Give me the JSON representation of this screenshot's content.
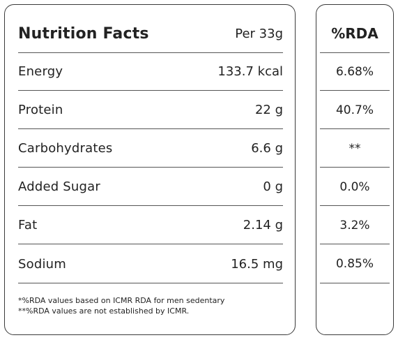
{
  "nutrition": {
    "title": "Nutrition Facts",
    "serving": "Per 33g",
    "rows": [
      {
        "label": "Energy",
        "value": "133.7 kcal"
      },
      {
        "label": "Protein",
        "value": "22 g"
      },
      {
        "label": "Carbohydrates",
        "value": "6.6 g"
      },
      {
        "label": "Added Sugar",
        "value": "0 g"
      },
      {
        "label": "Fat",
        "value": "2.14 g"
      },
      {
        "label": "Sodium",
        "value": "16.5 mg"
      }
    ],
    "footnotes": [
      "*%RDA values based on ICMR RDA for men sedentary",
      "**%RDA values are not established by ICMR."
    ]
  },
  "rda": {
    "header": "%RDA",
    "values": [
      "6.68%",
      "40.7%",
      "**",
      "0.0%",
      "3.2%",
      "0.85%"
    ]
  }
}
